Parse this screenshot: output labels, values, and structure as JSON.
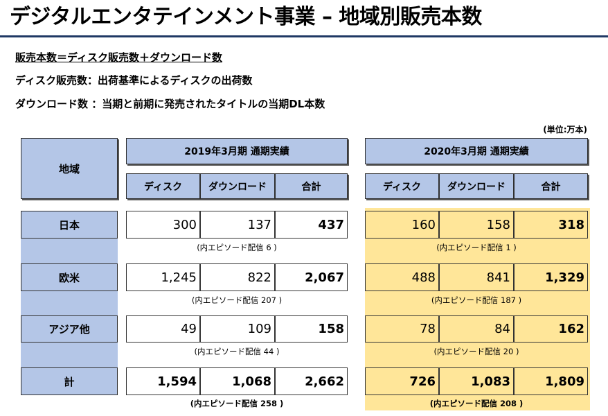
{
  "title": "デジタルエンタテインメント事業 – 地域別販売本数",
  "definitions": {
    "line1": "販売本数＝ディスク販売数＋ダウンロード数",
    "line2": "ディスク販売数：出荷基準によるディスクの出荷数",
    "line3": "ダウンロード数 ：当期と前期に発売されたタイトルの当期DL本数"
  },
  "unit": "(単位:万本)",
  "table": {
    "region_header": "地域",
    "period1": "2019年3月期  通期実績",
    "period2": "2020年3月期  通期実績",
    "col_disc": "ディスク",
    "col_download": "ダウンロード",
    "col_total": "合計",
    "rows": [
      {
        "region": "日本",
        "p1": [
          "300",
          "137",
          "437"
        ],
        "p2": [
          "160",
          "158",
          "318"
        ],
        "note1": "(内エピソード配信 6 )",
        "note2": "(内エピソード配信 1 )"
      },
      {
        "region": "欧米",
        "p1": [
          "1,245",
          "822",
          "2,067"
        ],
        "p2": [
          "488",
          "841",
          "1,329"
        ],
        "note1": "(内エピソード配信 207 )",
        "note2": "(内エピソード配信 187 )"
      },
      {
        "region": "アジア他",
        "p1": [
          "49",
          "109",
          "158"
        ],
        "p2": [
          "78",
          "84",
          "162"
        ],
        "note1": "(内エピソード配信 44 )",
        "note2": "(内エピソード配信 20 )"
      },
      {
        "region": "計",
        "p1": [
          "1,594",
          "1,068",
          "2,662"
        ],
        "p2": [
          "726",
          "1,083",
          "1,809"
        ],
        "note1": "(内エピソード配信 258 )",
        "note2": "(内エピソード配信 208 )"
      }
    ]
  }
}
